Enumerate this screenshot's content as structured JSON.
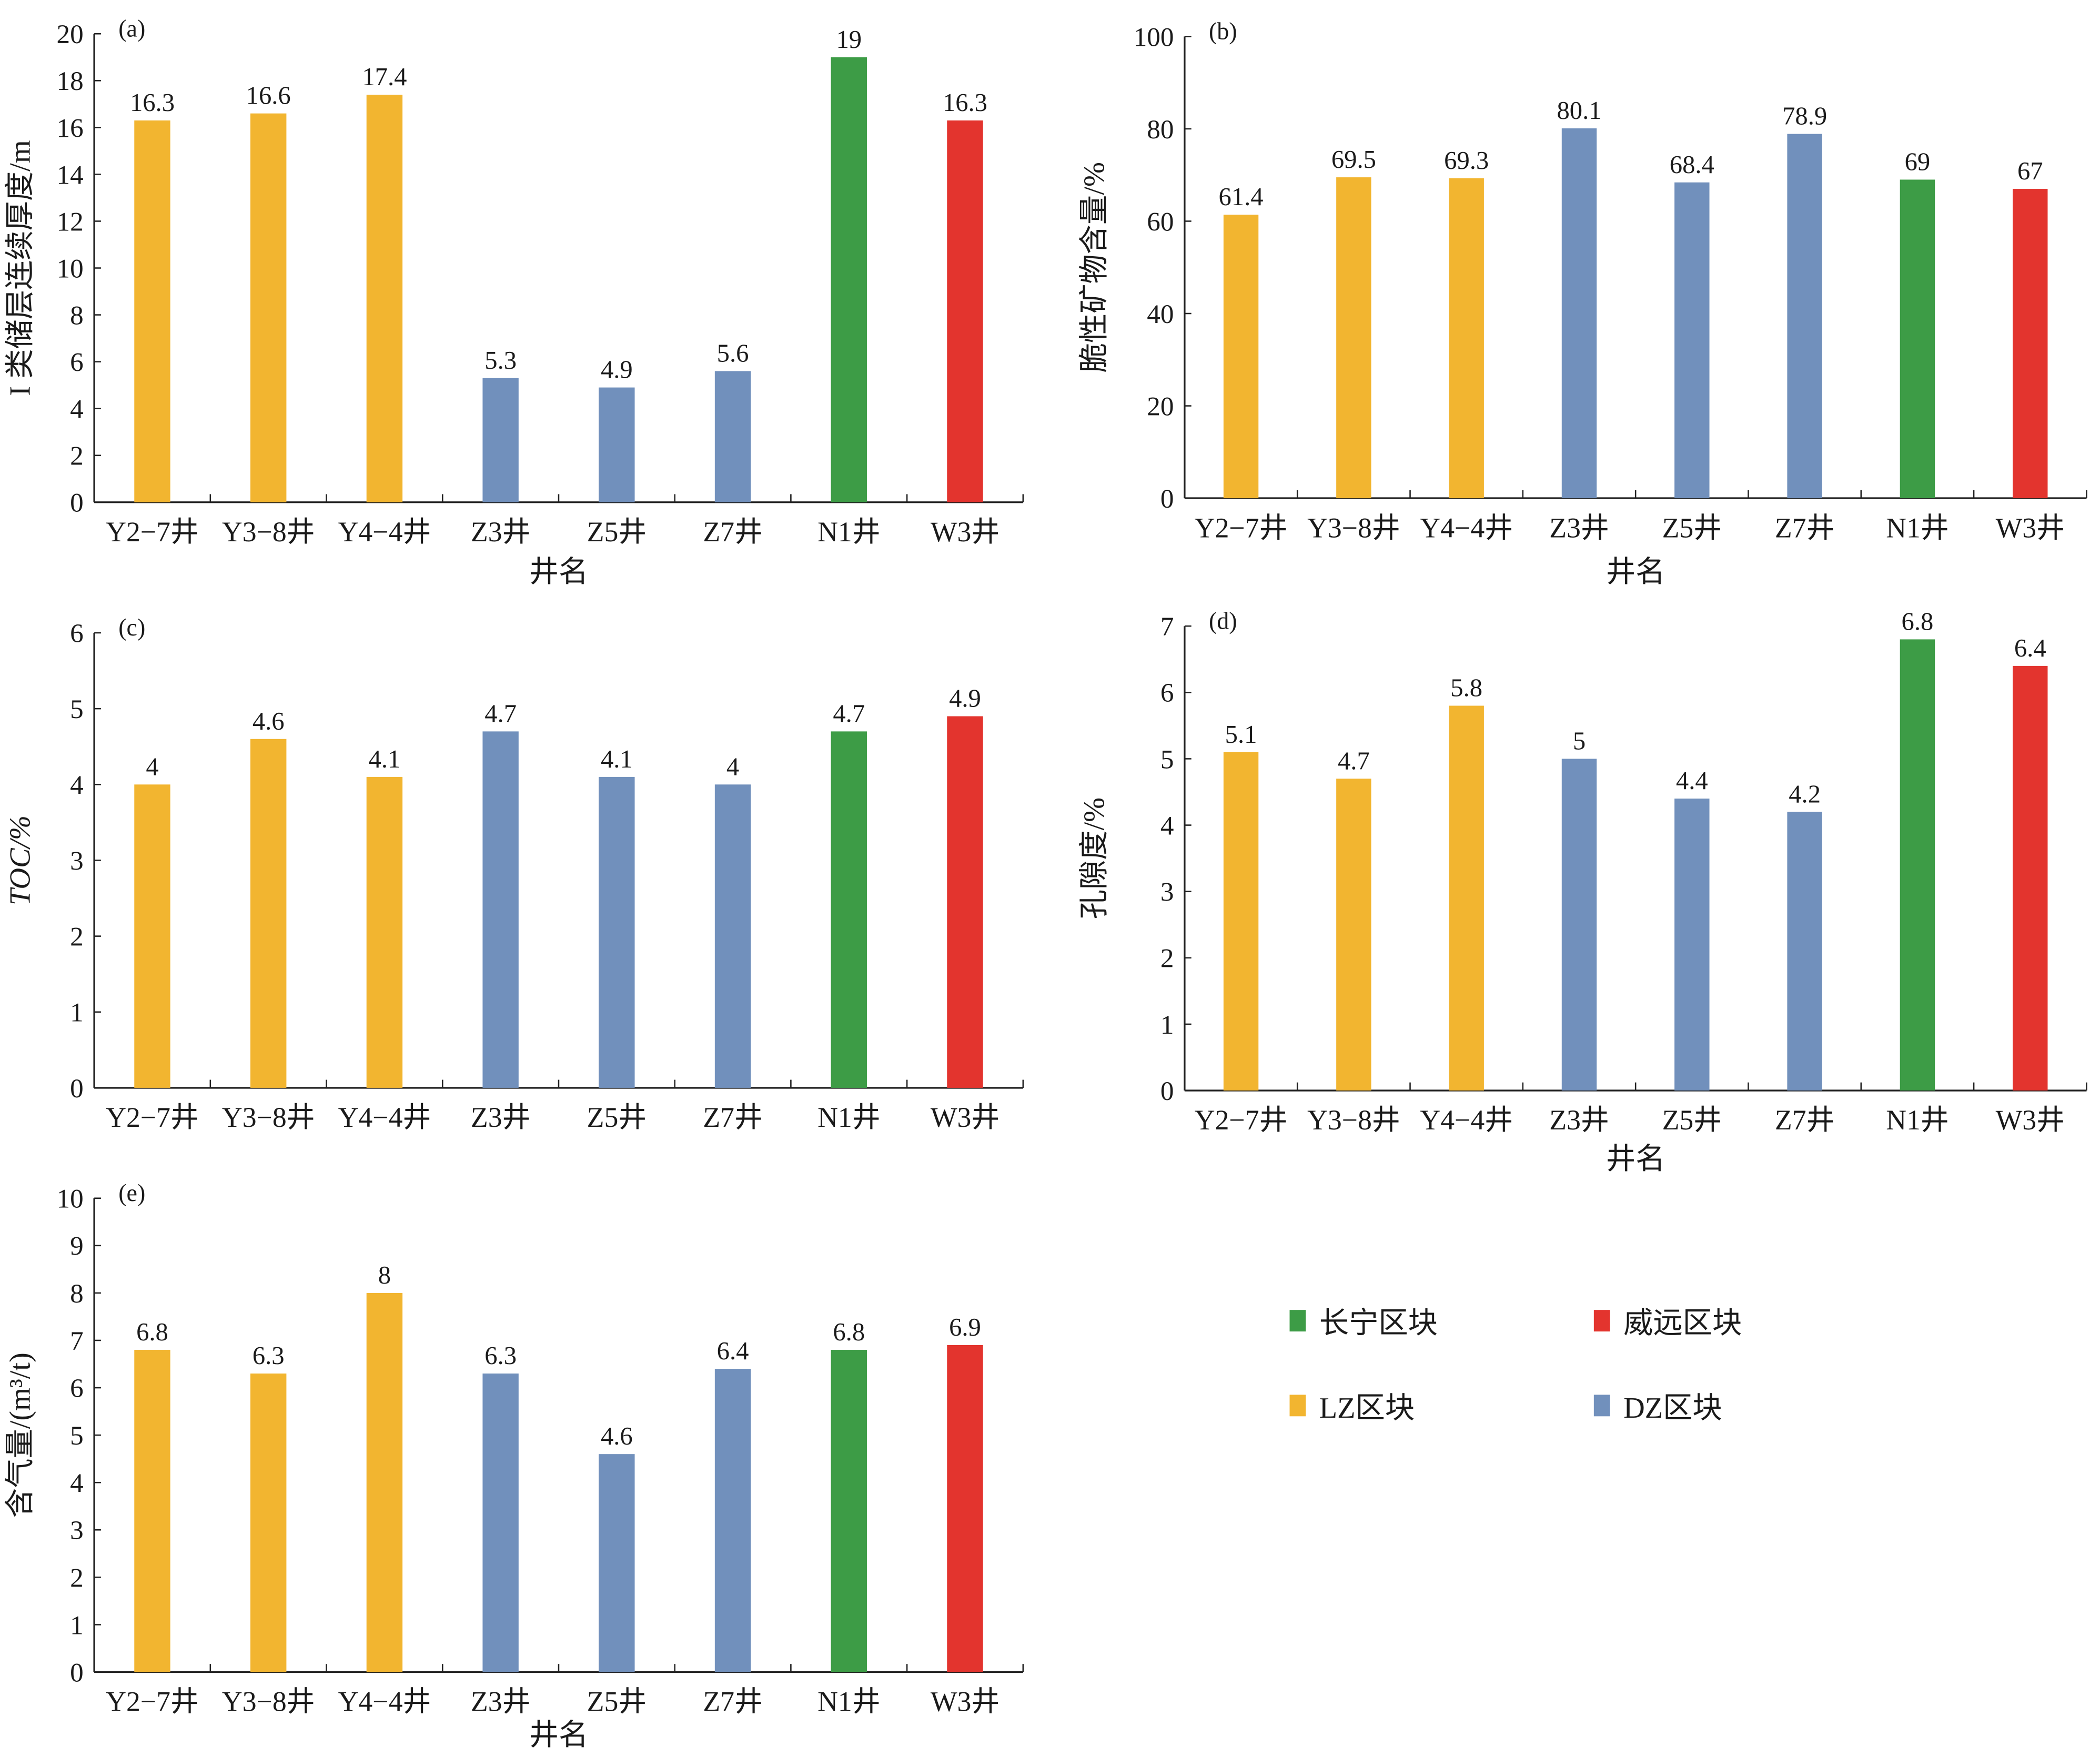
{
  "colors": {
    "长宁区块": "#3D9C46",
    "威远区块": "#E3342E",
    "LZ区块": "#F2B530",
    "DZ区块": "#7190BC"
  },
  "legend": {
    "position": "lower-right",
    "items": [
      {
        "label": "长宁区块",
        "color": "#3D9C46"
      },
      {
        "label": "威远区块",
        "color": "#E3342E"
      },
      {
        "label": "LZ区块",
        "color": "#F2B530"
      },
      {
        "label": "DZ区块",
        "color": "#7190BC"
      }
    ]
  },
  "chart_data": [
    {
      "panel": "(a)",
      "type": "bar",
      "xlabel": "井名",
      "ylabel": "I 类储层连续厚度/m",
      "ylim": [
        0,
        20
      ],
      "ytick_step": 2,
      "categories": [
        "Y2−7井",
        "Y3−8井",
        "Y4−4井",
        "Z3井",
        "Z5井",
        "Z7井",
        "N1井",
        "W3井"
      ],
      "groups": [
        "LZ区块",
        "LZ区块",
        "LZ区块",
        "DZ区块",
        "DZ区块",
        "DZ区块",
        "长宁区块",
        "威远区块"
      ],
      "values": [
        16.3,
        16.6,
        17.4,
        5.3,
        4.9,
        5.6,
        19,
        16.3
      ]
    },
    {
      "panel": "(b)",
      "type": "bar",
      "xlabel": "井名",
      "ylabel": "脆性矿物含量/%",
      "ylim": [
        0,
        100
      ],
      "ytick_step": 20,
      "categories": [
        "Y2−7井",
        "Y3−8井",
        "Y4−4井",
        "Z3井",
        "Z5井",
        "Z7井",
        "N1井",
        "W3井"
      ],
      "groups": [
        "LZ区块",
        "LZ区块",
        "LZ区块",
        "DZ区块",
        "DZ区块",
        "DZ区块",
        "长宁区块",
        "威远区块"
      ],
      "values": [
        61.4,
        69.5,
        69.3,
        80.1,
        68.4,
        78.9,
        69,
        67
      ]
    },
    {
      "panel": "(c)",
      "type": "bar",
      "xlabel": "",
      "ylabel": "TOC/%",
      "ylim": [
        0,
        6
      ],
      "ytick_step": 1,
      "categories": [
        "Y2−7井",
        "Y3−8井",
        "Y4−4井",
        "Z3井",
        "Z5井",
        "Z7井",
        "N1井",
        "W3井"
      ],
      "groups": [
        "LZ区块",
        "LZ区块",
        "LZ区块",
        "DZ区块",
        "DZ区块",
        "DZ区块",
        "长宁区块",
        "威远区块"
      ],
      "values": [
        4,
        4.6,
        4.1,
        4.7,
        4.1,
        4,
        4.7,
        4.9
      ]
    },
    {
      "panel": "(d)",
      "type": "bar",
      "xlabel": "井名",
      "ylabel": "孔隙度/%",
      "ylim": [
        0,
        7
      ],
      "ytick_step": 1,
      "categories": [
        "Y2−7井",
        "Y3−8井",
        "Y4−4井",
        "Z3井",
        "Z5井",
        "Z7井",
        "N1井",
        "W3井"
      ],
      "groups": [
        "LZ区块",
        "LZ区块",
        "LZ区块",
        "DZ区块",
        "DZ区块",
        "DZ区块",
        "长宁区块",
        "威远区块"
      ],
      "values": [
        5.1,
        4.7,
        5.8,
        5,
        4.4,
        4.2,
        6.8,
        6.4
      ]
    },
    {
      "panel": "(e)",
      "type": "bar",
      "xlabel": "井名",
      "ylabel": "含气量/(m³/t)",
      "ylim": [
        0,
        10
      ],
      "ytick_step": 1,
      "categories": [
        "Y2−7井",
        "Y3−8井",
        "Y4−4井",
        "Z3井",
        "Z5井",
        "Z7井",
        "N1井",
        "W3井"
      ],
      "groups": [
        "LZ区块",
        "LZ区块",
        "LZ区块",
        "DZ区块",
        "DZ区块",
        "DZ区块",
        "长宁区块",
        "威远区块"
      ],
      "values": [
        6.8,
        6.3,
        8,
        6.3,
        4.6,
        6.4,
        6.8,
        6.9
      ]
    }
  ]
}
